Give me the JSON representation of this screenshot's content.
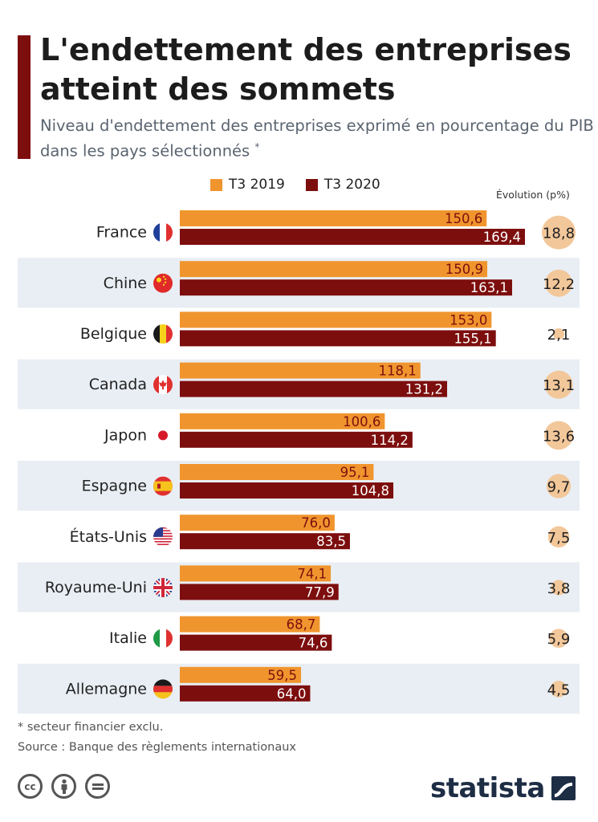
{
  "title": "L'endettement des entreprises atteint des sommets",
  "subtitle": "Niveau d'endettement des entreprises exprimé en pourcentage du PIB dans les pays sélectionnés",
  "subtitle_mark": "*",
  "evolution_header": "Évolution (p%)",
  "footnote": "* secteur financier exclu.",
  "source": "Source : Banque des règlements internationaux",
  "brand": "statista",
  "license_icons": [
    "cc-icon",
    "attribution-icon",
    "no-derivatives-icon"
  ],
  "colors": {
    "t3_2019": "#f0952e",
    "t3_2020": "#7d0e0e",
    "accent": "#7d0e0e",
    "row_alt": "#e9eef4",
    "bubble": "#f2c79a"
  },
  "chart_data": {
    "type": "bar",
    "orientation": "horizontal",
    "categories": [
      "France",
      "Chine",
      "Belgique",
      "Canada",
      "Japon",
      "Espagne",
      "États-Unis",
      "Royaume-Uni",
      "Italie",
      "Allemagne"
    ],
    "flags": [
      "flag-france-icon",
      "flag-china-icon",
      "flag-belgium-icon",
      "flag-canada-icon",
      "flag-japan-icon",
      "flag-spain-icon",
      "flag-usa-icon",
      "flag-uk-icon",
      "flag-italy-icon",
      "flag-germany-icon"
    ],
    "series": [
      {
        "name": "T3 2019",
        "values": [
          150.6,
          150.9,
          153.0,
          118.1,
          100.6,
          95.1,
          76.0,
          74.1,
          68.7,
          59.5
        ],
        "labels": [
          "150,6",
          "150,9",
          "153,0",
          "118,1",
          "100,6",
          "95,1",
          "76,0",
          "74,1",
          "68,7",
          "59,5"
        ]
      },
      {
        "name": "T3 2020",
        "values": [
          169.4,
          163.1,
          155.1,
          131.2,
          114.2,
          104.8,
          83.5,
          77.9,
          74.6,
          64.0
        ],
        "labels": [
          "169,4",
          "163,1",
          "155,1",
          "131,2",
          "114,2",
          "104,8",
          "83,5",
          "77,9",
          "74,6",
          "64,0"
        ]
      }
    ],
    "evolution": {
      "values": [
        18.8,
        12.2,
        2.1,
        13.1,
        13.6,
        9.7,
        7.5,
        3.8,
        5.9,
        4.5
      ],
      "labels": [
        "18,8",
        "12,2",
        "2,1",
        "13,1",
        "13,6",
        "9,7",
        "7,5",
        "3,8",
        "5,9",
        "4,5"
      ]
    },
    "xlim": [
      0,
      169.4
    ],
    "grid": false,
    "legend_position": "top"
  }
}
